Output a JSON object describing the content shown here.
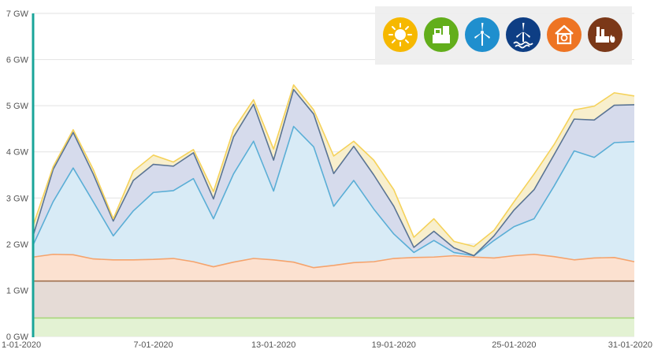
{
  "chart_data": {
    "type": "area",
    "y_tick_labels": [
      "0 GW",
      "1 GW",
      "2 GW",
      "3 GW",
      "4 GW",
      "5 GW",
      "6 GW",
      "7 GW"
    ],
    "ylim": [
      0,
      7
    ],
    "x_tick_labels": [
      "1-01-2020",
      "7-01-2020",
      "13-01-2020",
      "19-01-2020",
      "25-01-2020",
      "31-01-2020"
    ],
    "x_tick_days": [
      1,
      7,
      13,
      19,
      25,
      31
    ],
    "x": [
      1,
      2,
      3,
      4,
      5,
      6,
      7,
      8,
      9,
      10,
      11,
      12,
      13,
      14,
      15,
      16,
      17,
      18,
      19,
      20,
      21,
      22,
      23,
      24,
      25,
      26,
      27,
      28,
      29,
      30,
      31
    ],
    "grid": true,
    "legend_position": "top-right",
    "series": [
      {
        "icon": "biomass-icon",
        "color": "#a8d67a",
        "fill": "#e3f2d3",
        "values": [
          0.4,
          0.4,
          0.4,
          0.4,
          0.4,
          0.4,
          0.4,
          0.4,
          0.4,
          0.4,
          0.4,
          0.4,
          0.4,
          0.4,
          0.4,
          0.4,
          0.4,
          0.4,
          0.4,
          0.4,
          0.4,
          0.4,
          0.4,
          0.4,
          0.4,
          0.4,
          0.4,
          0.4,
          0.4,
          0.4,
          0.4
        ]
      },
      {
        "icon": "fossil-icon",
        "color": "#a0704e",
        "fill": "#e5dbd6",
        "values": [
          1.2,
          1.2,
          1.2,
          1.2,
          1.2,
          1.2,
          1.2,
          1.2,
          1.2,
          1.2,
          1.2,
          1.2,
          1.2,
          1.2,
          1.2,
          1.2,
          1.2,
          1.2,
          1.2,
          1.2,
          1.2,
          1.2,
          1.2,
          1.2,
          1.2,
          1.2,
          1.2,
          1.2,
          1.2,
          1.2,
          1.2
        ]
      },
      {
        "icon": "waste-icon",
        "color": "#f5a36c",
        "fill": "#fce1d0",
        "values": [
          1.72,
          1.78,
          1.77,
          1.68,
          1.66,
          1.66,
          1.67,
          1.69,
          1.62,
          1.51,
          1.61,
          1.69,
          1.66,
          1.61,
          1.49,
          1.54,
          1.6,
          1.62,
          1.69,
          1.71,
          1.72,
          1.75,
          1.72,
          1.7,
          1.75,
          1.78,
          1.73,
          1.66,
          1.7,
          1.71,
          1.62
        ]
      },
      {
        "icon": "onshore-wind-icon",
        "color": "#5aaed6",
        "fill": "#d8ebf6",
        "values": [
          1.98,
          2.92,
          3.65,
          2.92,
          2.18,
          2.72,
          3.12,
          3.16,
          3.42,
          2.55,
          3.52,
          4.23,
          3.15,
          4.55,
          4.11,
          2.82,
          3.38,
          2.76,
          2.22,
          1.82,
          2.08,
          1.82,
          1.75,
          2.08,
          2.38,
          2.55,
          3.26,
          4.02,
          3.88,
          4.2,
          4.22
        ]
      },
      {
        "icon": "offshore-wind-icon",
        "color": "#5a7494",
        "fill": "#d6dbec",
        "values": [
          2.18,
          3.62,
          4.42,
          3.52,
          2.5,
          3.38,
          3.73,
          3.69,
          3.98,
          2.98,
          4.32,
          5.03,
          3.82,
          5.35,
          4.82,
          3.53,
          4.12,
          3.5,
          2.82,
          1.93,
          2.28,
          1.92,
          1.75,
          2.18,
          2.74,
          3.18,
          3.94,
          4.71,
          4.69,
          5.01,
          5.02
        ]
      },
      {
        "icon": "solar-icon",
        "color": "#f5d25a",
        "fill": "#f8efcd",
        "values": [
          2.4,
          3.68,
          4.48,
          3.62,
          2.55,
          3.58,
          3.93,
          3.78,
          4.05,
          3.14,
          4.48,
          5.13,
          4.06,
          5.45,
          4.91,
          3.91,
          4.23,
          3.82,
          3.18,
          2.15,
          2.55,
          2.06,
          1.95,
          2.3,
          2.92,
          3.52,
          4.16,
          4.91,
          4.99,
          5.28,
          5.21
        ]
      }
    ]
  },
  "legend": [
    {
      "icon": "solar-icon",
      "color": "#f6b800"
    },
    {
      "icon": "biomass-icon",
      "color": "#62ae1b"
    },
    {
      "icon": "onshore-wind-icon",
      "color": "#1f8fce"
    },
    {
      "icon": "offshore-wind-icon",
      "color": "#0e3e84"
    },
    {
      "icon": "waste-icon",
      "color": "#ee7423"
    },
    {
      "icon": "fossil-icon",
      "color": "#7b3818"
    }
  ]
}
